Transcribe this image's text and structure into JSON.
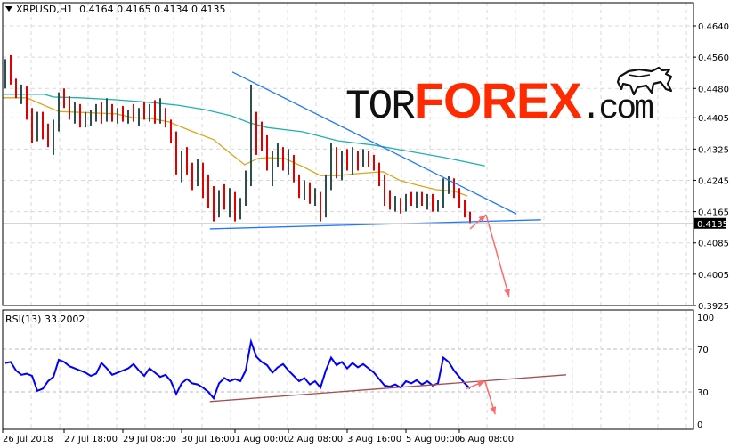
{
  "header": {
    "symbol": "XRPUSD,H1",
    "ohlc": "0.4164 0.4165 0.4134 0.4135"
  },
  "logo": {
    "text": "TORFOREX.com",
    "part1": "TOR",
    "part2": "FOREX",
    "part3": ".com"
  },
  "rsi": {
    "label": "RSI(13) 33.2002",
    "levels": [
      70,
      30
    ],
    "ticks": [
      "100",
      "70",
      "30",
      "0"
    ],
    "tick_values": [
      100,
      70,
      30,
      0
    ]
  },
  "colors": {
    "bear": "#e00000",
    "bull": "#2f4f4f",
    "ma_fast": "#daa520",
    "ma_slow": "#20b2aa",
    "trendline": "#1e78ff",
    "arrow": "#ff6a6a",
    "rsi_line": "#0000ff",
    "rsi_trend": "#a05050",
    "grid": "#d8d8d8",
    "current_price_bg": "#000"
  },
  "chart_data": {
    "type": "ohlc-bar",
    "symbol": "XRPUSD",
    "timeframe": "H1",
    "ylim": [
      0.3925,
      0.464
    ],
    "y_ticks": [
      "0.4640",
      "0.4560",
      "0.4480",
      "0.4405",
      "0.4325",
      "0.4245",
      "0.4165",
      "0.4085",
      "0.4005",
      "0.3925"
    ],
    "y_tick_values": [
      0.464,
      0.456,
      0.448,
      0.4405,
      0.4325,
      0.4245,
      0.4165,
      0.4085,
      0.4005,
      0.3925
    ],
    "current_price": "0.4135",
    "x_ticks": [
      "26 Jul 2018",
      "27 Jul 18:00",
      "29 Jul 08:00",
      "30 Jul 16:00",
      "1 Aug 00:00",
      "2 Aug 08:00",
      "3 Aug 16:00",
      "5 Aug 00:00",
      "6 Aug 08:00"
    ],
    "x_tick_bar_index": [
      0,
      11,
      22,
      33,
      43,
      53,
      64,
      75,
      85
    ],
    "grid": true,
    "bars": [
      [
        0.452,
        0.4555,
        0.448,
        0.453
      ],
      [
        0.453,
        0.4565,
        0.449,
        0.45
      ],
      [
        0.45,
        0.4505,
        0.4455,
        0.447
      ],
      [
        0.447,
        0.449,
        0.444,
        0.448
      ],
      [
        0.448,
        0.4485,
        0.44,
        0.441
      ],
      [
        0.441,
        0.443,
        0.434,
        0.436
      ],
      [
        0.436,
        0.442,
        0.4345,
        0.44
      ],
      [
        0.44,
        0.442,
        0.435,
        0.437
      ],
      [
        0.437,
        0.439,
        0.433,
        0.4345
      ],
      [
        0.4345,
        0.44,
        0.431,
        0.4385
      ],
      [
        0.4385,
        0.447,
        0.437,
        0.4455
      ],
      [
        0.4455,
        0.448,
        0.443,
        0.444
      ],
      [
        0.444,
        0.446,
        0.44,
        0.442
      ],
      [
        0.442,
        0.4445,
        0.439,
        0.443
      ],
      [
        0.443,
        0.444,
        0.438,
        0.4395
      ],
      [
        0.4395,
        0.442,
        0.438,
        0.4405
      ],
      [
        0.4405,
        0.4425,
        0.4385,
        0.441
      ],
      [
        0.441,
        0.444,
        0.4395,
        0.442
      ],
      [
        0.442,
        0.4445,
        0.439,
        0.44
      ],
      [
        0.44,
        0.4455,
        0.4395,
        0.443
      ],
      [
        0.443,
        0.444,
        0.4395,
        0.441
      ],
      [
        0.441,
        0.443,
        0.439,
        0.442
      ],
      [
        0.442,
        0.4435,
        0.4395,
        0.4405
      ],
      [
        0.4405,
        0.4425,
        0.439,
        0.4415
      ],
      [
        0.4415,
        0.444,
        0.4395,
        0.44
      ],
      [
        0.44,
        0.443,
        0.4385,
        0.442
      ],
      [
        0.442,
        0.4445,
        0.44,
        0.441
      ],
      [
        0.441,
        0.444,
        0.4395,
        0.443
      ],
      [
        0.443,
        0.445,
        0.439,
        0.44
      ],
      [
        0.44,
        0.4455,
        0.439,
        0.442
      ],
      [
        0.442,
        0.443,
        0.438,
        0.4395
      ],
      [
        0.4395,
        0.44,
        0.434,
        0.435
      ],
      [
        0.435,
        0.437,
        0.426,
        0.428
      ],
      [
        0.428,
        0.432,
        0.424,
        0.43
      ],
      [
        0.43,
        0.433,
        0.426,
        0.427
      ],
      [
        0.427,
        0.429,
        0.422,
        0.424
      ],
      [
        0.424,
        0.43,
        0.423,
        0.428
      ],
      [
        0.428,
        0.429,
        0.42,
        0.4215
      ],
      [
        0.4215,
        0.426,
        0.4175,
        0.419
      ],
      [
        0.419,
        0.423,
        0.414,
        0.416
      ],
      [
        0.416,
        0.422,
        0.415,
        0.421
      ],
      [
        0.421,
        0.4235,
        0.417,
        0.418
      ],
      [
        0.418,
        0.4225,
        0.415,
        0.42
      ],
      [
        0.42,
        0.4215,
        0.414,
        0.416
      ],
      [
        0.416,
        0.42,
        0.4145,
        0.419
      ],
      [
        0.419,
        0.427,
        0.418,
        0.426
      ],
      [
        0.426,
        0.449,
        0.423,
        0.44
      ],
      [
        0.44,
        0.442,
        0.431,
        0.438
      ],
      [
        0.438,
        0.4395,
        0.432,
        0.434
      ],
      [
        0.434,
        0.436,
        0.427,
        0.429
      ],
      [
        0.429,
        0.432,
        0.423,
        0.43
      ],
      [
        0.43,
        0.434,
        0.428,
        0.432
      ],
      [
        0.432,
        0.433,
        0.427,
        0.4285
      ],
      [
        0.4285,
        0.4325,
        0.426,
        0.43
      ],
      [
        0.43,
        0.431,
        0.424,
        0.425
      ],
      [
        0.425,
        0.426,
        0.42,
        0.4215
      ],
      [
        0.4215,
        0.4245,
        0.4195,
        0.423
      ],
      [
        0.423,
        0.424,
        0.4185,
        0.4195
      ],
      [
        0.4195,
        0.4225,
        0.418,
        0.421
      ],
      [
        0.421,
        0.4215,
        0.414,
        0.416
      ],
      [
        0.416,
        0.426,
        0.415,
        0.424
      ],
      [
        0.424,
        0.434,
        0.422,
        0.43
      ],
      [
        0.43,
        0.433,
        0.425,
        0.427
      ],
      [
        0.427,
        0.432,
        0.4245,
        0.43
      ],
      [
        0.43,
        0.4325,
        0.427,
        0.4285
      ],
      [
        0.4285,
        0.433,
        0.426,
        0.431
      ],
      [
        0.431,
        0.432,
        0.427,
        0.429
      ],
      [
        0.429,
        0.4325,
        0.428,
        0.431
      ],
      [
        0.431,
        0.432,
        0.428,
        0.4295
      ],
      [
        0.4295,
        0.431,
        0.427,
        0.428
      ],
      [
        0.428,
        0.429,
        0.423,
        0.4245
      ],
      [
        0.4245,
        0.426,
        0.418,
        0.4195
      ],
      [
        0.4195,
        0.422,
        0.417,
        0.418
      ],
      [
        0.418,
        0.4205,
        0.4165,
        0.419
      ],
      [
        0.419,
        0.42,
        0.416,
        0.4175
      ],
      [
        0.4175,
        0.421,
        0.4165,
        0.42
      ],
      [
        0.42,
        0.4215,
        0.418,
        0.4195
      ],
      [
        0.4195,
        0.4215,
        0.4175,
        0.4205
      ],
      [
        0.4205,
        0.4215,
        0.418,
        0.419
      ],
      [
        0.419,
        0.421,
        0.417,
        0.42
      ],
      [
        0.42,
        0.421,
        0.4165,
        0.4175
      ],
      [
        0.4175,
        0.4195,
        0.4165,
        0.4185
      ],
      [
        0.4185,
        0.425,
        0.4175,
        0.4235
      ],
      [
        0.4235,
        0.4255,
        0.421,
        0.4245
      ],
      [
        0.4245,
        0.425,
        0.42,
        0.4215
      ],
      [
        0.4215,
        0.4225,
        0.4175,
        0.4185
      ],
      [
        0.4185,
        0.4195,
        0.415,
        0.4165
      ],
      [
        0.4164,
        0.4165,
        0.4134,
        0.4135
      ]
    ],
    "ma_fast": [
      [
        -0.5,
        0.4456
      ],
      [
        4,
        0.4456
      ],
      [
        10,
        0.4421
      ],
      [
        20.7,
        0.4415
      ],
      [
        24,
        0.4405
      ],
      [
        27.3,
        0.4403
      ],
      [
        30.7,
        0.4394
      ],
      [
        34.8,
        0.4371
      ],
      [
        39,
        0.4349
      ],
      [
        42.3,
        0.4312
      ],
      [
        44.8,
        0.4285
      ],
      [
        47.3,
        0.4301
      ],
      [
        49,
        0.4303
      ],
      [
        52.3,
        0.4301
      ],
      [
        55.7,
        0.428
      ],
      [
        59,
        0.4257
      ],
      [
        62.3,
        0.4257
      ],
      [
        65.7,
        0.4262
      ],
      [
        70.7,
        0.4267
      ],
      [
        74,
        0.4244
      ],
      [
        77.3,
        0.4232
      ],
      [
        80.7,
        0.4221
      ],
      [
        84,
        0.4217
      ],
      [
        86.5,
        0.4205
      ]
    ],
    "ma_slow": [
      [
        -0.5,
        0.4465
      ],
      [
        7.3,
        0.4465
      ],
      [
        9,
        0.4458
      ],
      [
        14,
        0.4456
      ],
      [
        20.7,
        0.4451
      ],
      [
        27.3,
        0.4444
      ],
      [
        32.3,
        0.4437
      ],
      [
        37.3,
        0.4426
      ],
      [
        42.3,
        0.441
      ],
      [
        45.7,
        0.4392
      ],
      [
        49,
        0.438
      ],
      [
        55.7,
        0.4369
      ],
      [
        62.3,
        0.4346
      ],
      [
        69,
        0.4335
      ],
      [
        75.7,
        0.4319
      ],
      [
        82.3,
        0.4303
      ],
      [
        89.8,
        0.4282
      ]
    ],
    "trendlines": [
      [
        [
          42.5,
          0.4522
        ],
        [
          95.7,
          0.4159
        ]
      ],
      [
        [
          38.3,
          0.4121
        ],
        [
          100.3,
          0.4144
        ]
      ]
    ],
    "forecast_arrows": [
      [
        [
          87,
          0.4121
        ],
        [
          90,
          0.4157
        ]
      ],
      [
        [
          90,
          0.4157
        ],
        [
          94.3,
          0.3948
        ]
      ]
    ],
    "rsi_values": [
      57,
      58,
      50,
      46,
      47,
      45,
      31,
      33,
      40,
      44,
      60,
      58,
      54,
      52,
      50,
      48,
      45,
      47,
      57,
      52,
      46,
      48,
      50,
      52,
      56,
      50,
      45,
      52,
      48,
      44,
      46,
      40,
      28,
      38,
      42,
      38,
      37,
      34,
      30,
      24,
      38,
      43,
      40,
      42,
      40,
      50,
      77,
      63,
      58,
      55,
      48,
      53,
      56,
      50,
      45,
      40,
      43,
      37,
      40,
      34,
      50,
      62,
      55,
      58,
      52,
      57,
      53,
      56,
      52,
      48,
      42,
      36,
      35,
      37,
      34,
      40,
      38,
      41,
      37,
      40,
      36,
      38,
      62,
      58,
      50,
      44,
      38,
      33.2
    ],
    "rsi_trendline": [
      [
        38.3,
        21
      ],
      [
        105,
        46
      ]
    ],
    "rsi_arrows": [
      [
        [
          86.3,
          33
        ],
        [
          89.8,
          40
        ]
      ],
      [
        [
          89.8,
          40
        ],
        [
          91.7,
          9
        ]
      ]
    ]
  }
}
